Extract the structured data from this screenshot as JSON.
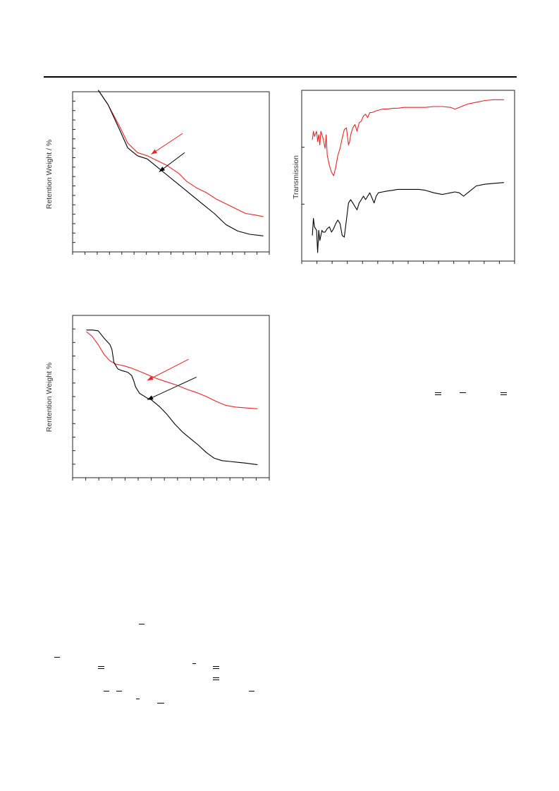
{
  "chart_data": [
    {
      "id": "tga-1",
      "type": "line",
      "ylabel": "Retention Weight / %",
      "xlim": [
        0,
        100
      ],
      "ylim": [
        0,
        100
      ],
      "x_ticks": 16,
      "y_ticks": 17,
      "grid": false,
      "series": [
        {
          "color": "#e8262a",
          "x": [
            13,
            18,
            24,
            28,
            33,
            38,
            43,
            48,
            54,
            58,
            63,
            68,
            73,
            78,
            83,
            88,
            93,
            97
          ],
          "y": [
            101,
            92,
            78,
            68,
            62,
            60,
            57,
            54,
            49,
            44,
            40,
            37,
            33,
            30,
            27,
            24,
            23,
            22
          ]
        },
        {
          "color": "#000000",
          "x": [
            13,
            18,
            24,
            28,
            33,
            38,
            43,
            48,
            54,
            60,
            66,
            72,
            78,
            84,
            90,
            97
          ],
          "y": [
            101,
            92,
            76,
            65,
            60,
            58,
            53,
            48,
            42,
            36,
            30,
            24,
            17,
            13,
            11,
            10
          ]
        }
      ],
      "arrows": [
        {
          "color": "#e8262a",
          "from": [
            56,
            74
          ],
          "to": [
            40,
            61
          ]
        },
        {
          "color": "#000000",
          "from": [
            57,
            62
          ],
          "to": [
            44,
            50
          ]
        }
      ]
    },
    {
      "id": "ftir",
      "type": "line",
      "ylabel": "Transmission",
      "xlim": [
        0,
        100
      ],
      "ylim": [
        0,
        100
      ],
      "x_ticks": 14,
      "y_ticks": 3,
      "grid": false,
      "series": [
        {
          "color": "#e8262a",
          "x": [
            5,
            5.5,
            6,
            7,
            7.5,
            8,
            8.5,
            9,
            10,
            11,
            11.5,
            12,
            13,
            14,
            15,
            16,
            17,
            18,
            19,
            20,
            21,
            22,
            22.5,
            23,
            24,
            24.5,
            25,
            26,
            27,
            28,
            29,
            30,
            31,
            32,
            33,
            35,
            38,
            40,
            43,
            45,
            48,
            52,
            55,
            58,
            62,
            66,
            70,
            72,
            74,
            76,
            78,
            82,
            86,
            90,
            95
          ],
          "y": [
            71,
            76,
            73,
            76,
            70,
            74,
            68,
            76,
            72,
            66,
            74,
            62,
            56,
            52,
            50,
            55,
            62,
            66,
            72,
            77,
            78,
            68,
            70,
            74,
            78,
            79,
            80,
            76,
            81,
            82,
            85,
            86,
            84,
            87,
            87,
            88,
            89,
            89,
            89.5,
            89.5,
            90,
            90,
            90,
            90,
            90.5,
            90.5,
            90,
            89,
            90,
            91,
            92,
            93,
            94,
            94.5,
            94.5
          ]
        },
        {
          "color": "#000000",
          "x": [
            5,
            5.5,
            6,
            7,
            7.5,
            8,
            8.5,
            9,
            9.5,
            10,
            11,
            12,
            13,
            14,
            15,
            16,
            17,
            18,
            19,
            20,
            21,
            22,
            23,
            24,
            25,
            26,
            27,
            28,
            29,
            30,
            31,
            32,
            33,
            34,
            35,
            36,
            38,
            40,
            43,
            45,
            48,
            52,
            55,
            58,
            62,
            66,
            70,
            72,
            74,
            76,
            78,
            82,
            86,
            90,
            95
          ],
          "y": [
            15,
            25,
            20,
            18,
            5,
            18,
            12,
            15,
            18,
            17,
            17,
            19,
            20,
            17,
            19,
            22,
            24,
            22,
            15,
            14,
            24,
            34,
            36,
            34,
            32,
            30,
            34,
            36,
            38,
            36,
            38,
            40,
            37,
            34,
            38,
            40,
            40.5,
            41,
            41.5,
            42,
            42,
            42,
            42,
            41.5,
            40,
            39,
            40,
            40.5,
            40,
            38,
            40,
            44,
            45,
            45.5,
            46
          ]
        }
      ]
    },
    {
      "id": "tga-2",
      "type": "line",
      "ylabel": "Rentention Weight %",
      "xlim": [
        0,
        100
      ],
      "ylim": [
        0,
        100
      ],
      "x_ticks": 15,
      "y_ticks": 12,
      "grid": false,
      "series": [
        {
          "color": "#e8262a",
          "x": [
            7,
            10,
            13,
            16,
            19,
            22,
            26,
            30,
            34,
            38,
            43,
            48,
            53,
            58,
            63,
            68,
            73,
            78,
            83,
            88,
            94
          ],
          "y": [
            90,
            87,
            82,
            76,
            72,
            70,
            69,
            67.5,
            65.5,
            63.5,
            61,
            59,
            57,
            54.5,
            52.5,
            50,
            47,
            44.5,
            43.5,
            43,
            42.5
          ]
        },
        {
          "color": "#000000",
          "x": [
            7,
            10,
            13,
            16,
            19,
            20,
            21,
            23,
            25,
            28,
            30,
            31,
            32,
            34,
            36,
            38,
            40,
            44,
            48,
            52,
            56,
            60,
            64,
            68,
            72,
            76,
            80,
            84,
            88,
            91,
            94
          ],
          "y": [
            91,
            91,
            90.5,
            86,
            82,
            79,
            71,
            67,
            66,
            65,
            63,
            60,
            56,
            52,
            50.5,
            49,
            48,
            44,
            39,
            33,
            28,
            24,
            20,
            15.5,
            12,
            10.5,
            10,
            9.5,
            9,
            8.5,
            8
          ]
        }
      ],
      "arrows": [
        {
          "color": "#e8262a",
          "from": [
            59,
            73
          ],
          "to": [
            38,
            60
          ]
        },
        {
          "color": "#000000",
          "from": [
            63,
            62
          ],
          "to": [
            38,
            48
          ]
        }
      ]
    }
  ]
}
